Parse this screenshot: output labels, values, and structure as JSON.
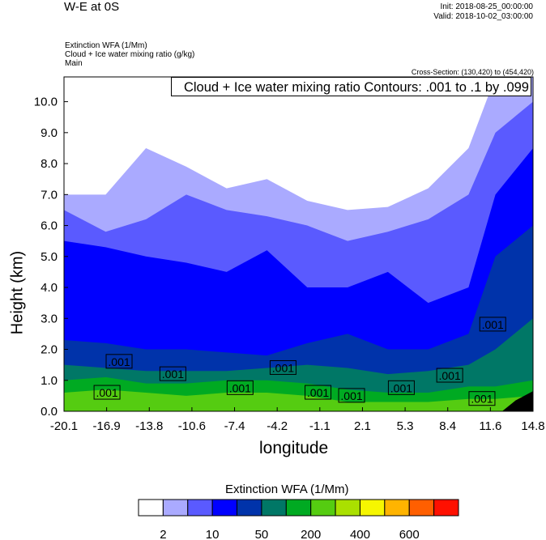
{
  "header": {
    "title": "W-E at 0S",
    "init": "Init: 2018-08-25_00:00:00",
    "valid": "Valid: 2018-10-02_03:00:00",
    "field1": "Extinction WFA   (1/Mm)",
    "field2": "Cloud + Ice water mixing ratio    (g/kg)",
    "run": "Main",
    "cross_section": "Cross-Section: (130,420) to (454,420)"
  },
  "chart_data": {
    "type": "heatmap",
    "contour_title": "Cloud + Ice water mixing ratio Contours: .001 to .1 by .099",
    "xlabel": "longitude",
    "ylabel": "Height (km)",
    "xlim": [
      -20.1,
      14.8
    ],
    "ylim": [
      0,
      10.8
    ],
    "xticks": [
      "-20.1",
      "-16.9",
      "-13.8",
      "-10.6",
      "-7.4",
      "-4.2",
      "-1.1",
      "2.1",
      "5.3",
      "8.4",
      "11.6",
      "14.8"
    ],
    "yticks": [
      "0.0",
      "1.0",
      "2.0",
      "3.0",
      "4.0",
      "5.0",
      "6.0",
      "7.0",
      "8.0",
      "9.0",
      "10.0"
    ],
    "colorbar": {
      "title": "Extinction WFA  (1/Mm)",
      "labels": [
        "2",
        "10",
        "50",
        "200",
        "400",
        "600"
      ],
      "colors": [
        "#ffffff",
        "#aaaaff",
        "#5a5aff",
        "#0000ff",
        "#0033aa",
        "#007766",
        "#00aa22",
        "#55cc11",
        "#aae000",
        "#f6f600",
        "#ffb400",
        "#ff5f00",
        "#ff1000"
      ]
    },
    "layer_lons": [
      -20.1,
      -17,
      -14,
      -11,
      -8,
      -5,
      -2,
      1,
      4,
      7,
      10,
      12,
      14.8
    ],
    "layers": [
      {
        "color_index": 1,
        "tops": [
          7,
          7,
          8.5,
          7.9,
          7.2,
          7.5,
          6.8,
          6.5,
          6.6,
          7.2,
          8.5,
          10.8,
          10.8
        ]
      },
      {
        "color_index": 2,
        "tops": [
          6.5,
          5.8,
          6.2,
          7.0,
          6.5,
          6.3,
          6.0,
          5.5,
          5.8,
          6.2,
          7.0,
          9,
          10
        ]
      },
      {
        "color_index": 3,
        "tops": [
          5.5,
          5.3,
          5.0,
          4.8,
          4.5,
          5.2,
          4.0,
          4.0,
          4.5,
          3.5,
          4,
          7,
          8.5
        ]
      },
      {
        "color_index": 4,
        "tops": [
          2.3,
          2.2,
          2.0,
          2.0,
          1.9,
          1.8,
          2.2,
          2.5,
          2.0,
          2.0,
          2.5,
          5,
          6
        ]
      },
      {
        "color_index": 5,
        "tops": [
          1.5,
          1.4,
          1.3,
          1.3,
          1.3,
          1.4,
          1.5,
          1.4,
          1.2,
          1.3,
          1.5,
          2,
          3
        ]
      },
      {
        "color_index": 6,
        "tops": [
          1.0,
          1.1,
          0.9,
          0.9,
          1.0,
          1.0,
          0.9,
          0.7,
          0.6,
          0.6,
          0.8,
          0.8,
          1
        ]
      },
      {
        "color_index": 7,
        "tops": [
          0.6,
          0.7,
          0.6,
          0.5,
          0.6,
          0.6,
          0.5,
          0.3,
          0.3,
          0.3,
          0.4,
          0.4,
          0.5
        ]
      }
    ],
    "contour_labels": [
      {
        "text": ".001",
        "lon": -16.0,
        "z": 1.6
      },
      {
        "text": ".001",
        "lon": -16.9,
        "z": 0.6
      },
      {
        "text": ".001",
        "lon": -12.0,
        "z": 1.2
      },
      {
        "text": ".001",
        "lon": -7.0,
        "z": 0.75
      },
      {
        "text": ".001",
        "lon": -3.8,
        "z": 1.4
      },
      {
        "text": ".001",
        "lon": -1.2,
        "z": 0.6
      },
      {
        "text": ".001",
        "lon": 1.3,
        "z": 0.5
      },
      {
        "text": ".001",
        "lon": 5.0,
        "z": 0.75
      },
      {
        "text": ".001",
        "lon": 8.6,
        "z": 1.15
      },
      {
        "text": ".001",
        "lon": 11.0,
        "z": 0.4
      },
      {
        "text": ".001",
        "lon": 11.8,
        "z": 2.8
      }
    ],
    "terrain": {
      "lons": [
        12.5,
        13.5,
        14.8
      ],
      "z": [
        0,
        0.35,
        0.65
      ]
    }
  }
}
